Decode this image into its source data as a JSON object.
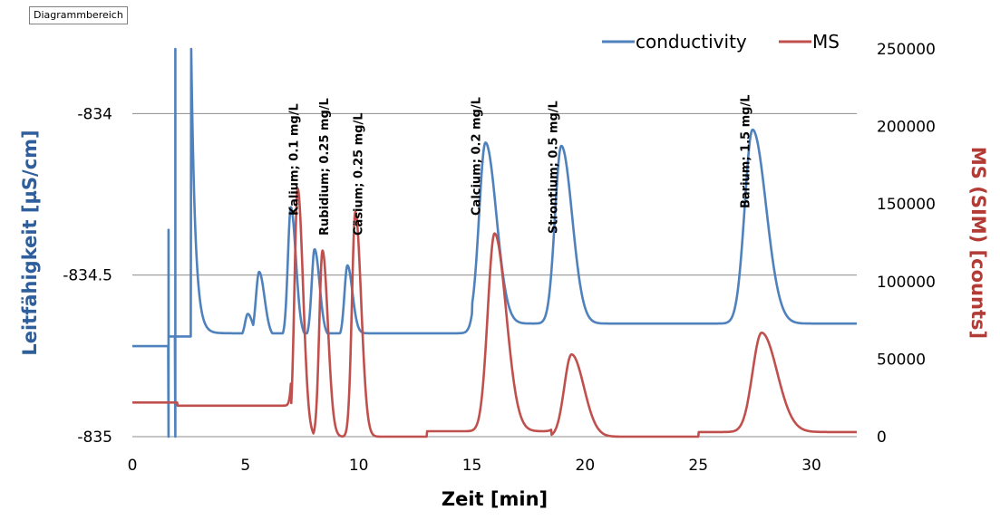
{
  "ui": {
    "chart_area_label": "Diagrammbereich"
  },
  "chart_data": {
    "type": "line",
    "xlabel": "Zeit [min]",
    "ylabel_left": "Leitfähigkeit [µS/cm]",
    "ylabel_right": "MS (SIM) [counts]",
    "xlim": [
      0,
      32
    ],
    "ylim_left": [
      -835,
      -833.8
    ],
    "ylim_right": [
      0,
      250000
    ],
    "x_ticks": [
      "0",
      "5",
      "10",
      "15",
      "20",
      "25",
      "30"
    ],
    "x_tick_values": [
      0,
      5,
      10,
      15,
      20,
      25,
      30
    ],
    "y_left_ticks": [
      "-834",
      "-834.5",
      "-835"
    ],
    "y_left_tick_values": [
      -834,
      -834.5,
      -835
    ],
    "y_right_ticks": [
      "250000",
      "200000",
      "150000",
      "100000",
      "50000",
      "0"
    ],
    "y_right_tick_values": [
      250000,
      200000,
      150000,
      100000,
      50000,
      0
    ],
    "grid": "horizontal at left-axis ticks",
    "legend_position": "top-right",
    "colors": {
      "conductivity": "#4F81BD",
      "MS": "#C0504D",
      "grid": "#8c8c8c"
    },
    "series": [
      {
        "name": "conductivity",
        "axis": "left",
        "baseline": [
          {
            "x_end": 1.6,
            "y": -834.72
          },
          {
            "x_end": 9.5,
            "y": -834.69
          },
          {
            "x_end": 15,
            "y": -834.68
          },
          {
            "x_end": 32,
            "y": -834.65
          }
        ],
        "spikes": [
          {
            "x": 1.6,
            "ymin": -835,
            "ymax": -834.36
          },
          {
            "x": 1.9,
            "ymin": -835,
            "ymax": -833.8
          },
          {
            "x": 2.6,
            "y": -833.8,
            "decay_to": -834.68
          }
        ],
        "peaks": [
          {
            "x": 5.1,
            "y": -834.62,
            "width": 0.12
          },
          {
            "x": 5.6,
            "y": -834.49,
            "width": 0.14
          },
          {
            "x": 7.0,
            "y": -834.29,
            "width": 0.13
          },
          {
            "x": 8.05,
            "y": -834.42,
            "width": 0.13
          },
          {
            "x": 9.5,
            "y": -834.47,
            "width": 0.13
          },
          {
            "x": 15.6,
            "y": -834.09,
            "width": 0.28
          },
          {
            "x": 18.95,
            "y": -834.1,
            "width": 0.28
          },
          {
            "x": 27.4,
            "y": -834.05,
            "width": 0.35
          }
        ]
      },
      {
        "name": "MS",
        "axis": "right",
        "baseline": [
          {
            "x_end": 2.0,
            "y": 22000
          },
          {
            "x_end": 7.0,
            "y": 20000
          },
          {
            "x_end": 13.0,
            "y": 0
          },
          {
            "x_end": 18.5,
            "y": 3500
          },
          {
            "x_end": 25,
            "y": 0
          },
          {
            "x_end": 32,
            "y": 3000
          }
        ],
        "peaks": [
          {
            "x": 7.3,
            "y": 160000,
            "width": 0.14
          },
          {
            "x": 8.4,
            "y": 120000,
            "width": 0.14
          },
          {
            "x": 9.85,
            "y": 145000,
            "width": 0.15
          },
          {
            "x": 16.0,
            "y": 131000,
            "width": 0.3
          },
          {
            "x": 19.4,
            "y": 53000,
            "width": 0.32
          },
          {
            "x": 27.8,
            "y": 67000,
            "width": 0.4
          }
        ]
      }
    ],
    "annotations": [
      {
        "text": "Kalium; 0.1 mg/L",
        "x": 7.15
      },
      {
        "text": "Rubidium; 0.25 mg/L",
        "x": 8.5
      },
      {
        "text": "Cäsium; 0.25 mg/L",
        "x": 10.0
      },
      {
        "text": "Calcium; 0.2 mg/L",
        "x": 15.2
      },
      {
        "text": "Strontium; 0.5 mg/L",
        "x": 18.6
      },
      {
        "text": "Barium; 1.5 mg/L",
        "x": 27.1
      }
    ]
  }
}
